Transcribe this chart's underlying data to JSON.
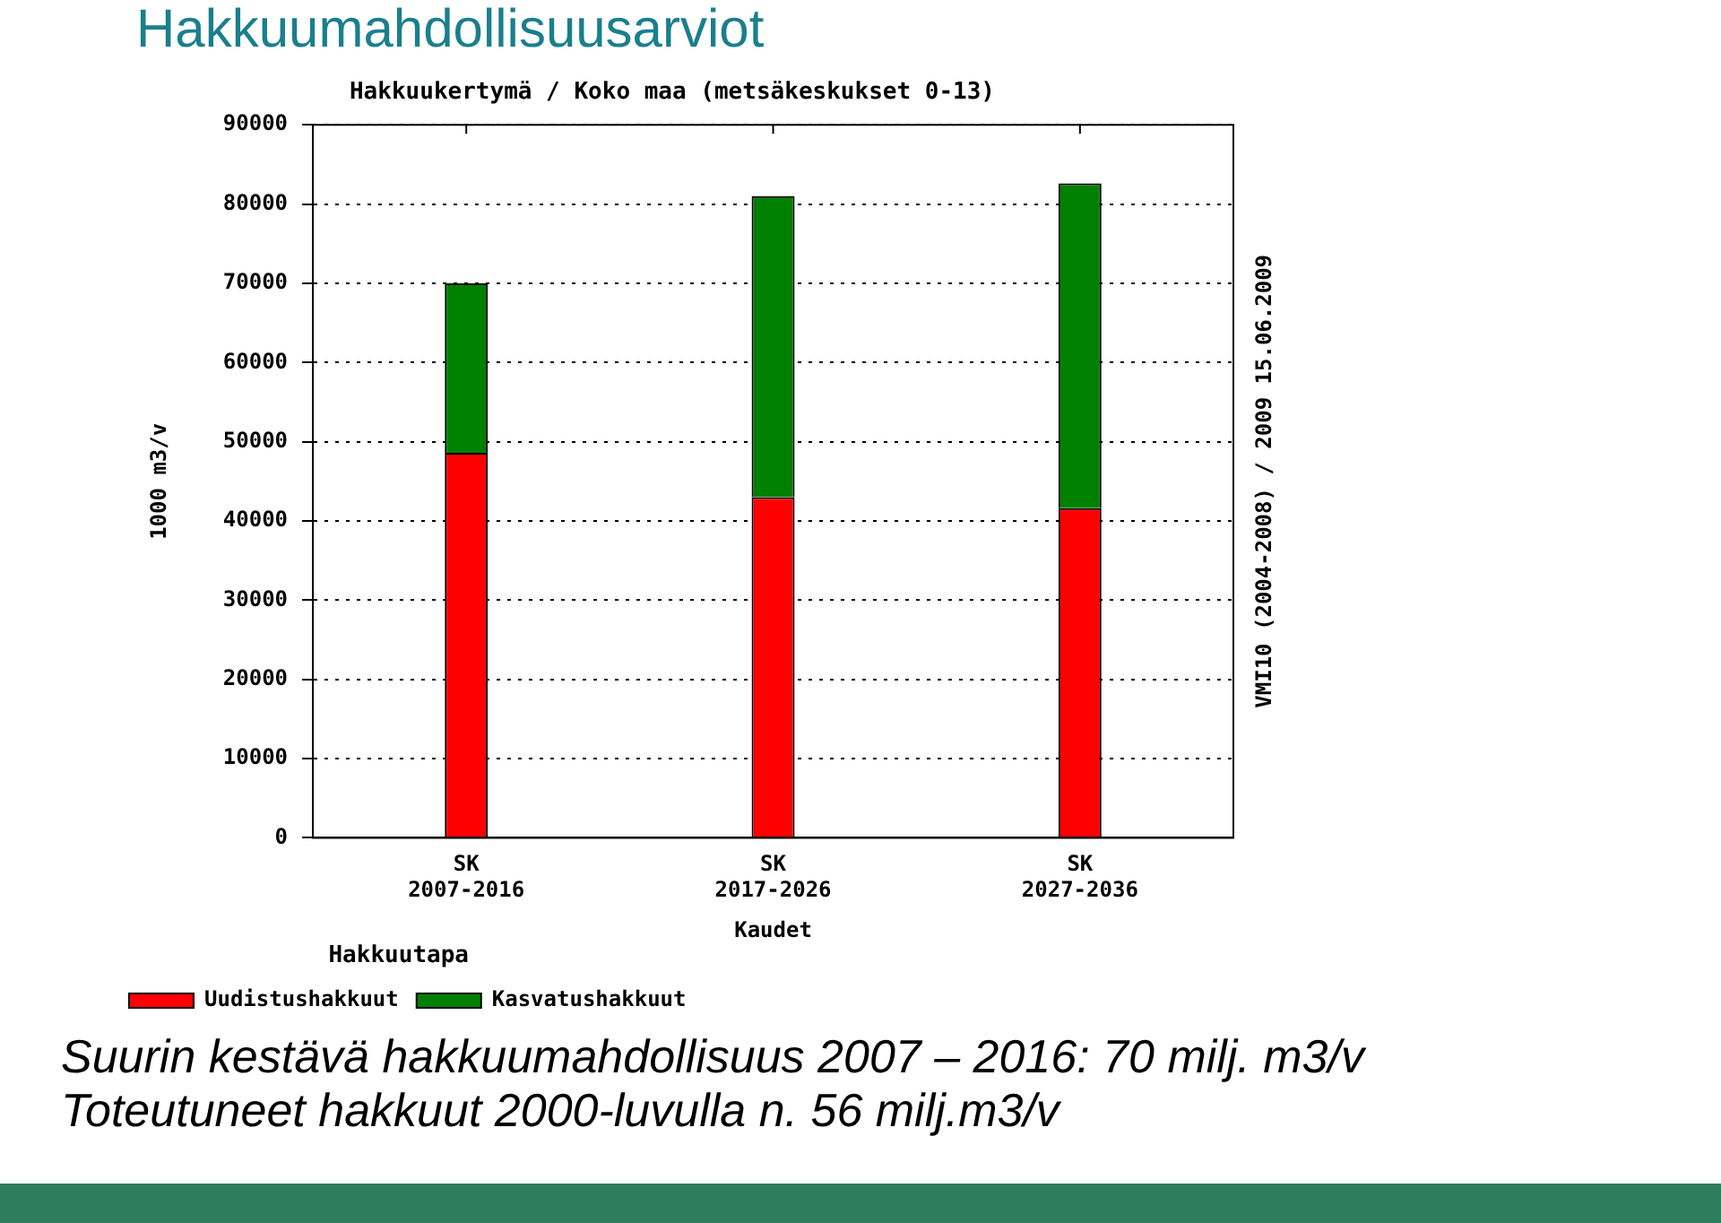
{
  "chart_data": {
    "type": "bar",
    "title": "Hakkuukertymä / Koko maa (metsäkeskukset 0-13)",
    "subtitle": "Hakkuumahdollisuusarviot",
    "xlabel": "Kaudet",
    "ylabel": "1000 m3/v",
    "legend_title": "Hakkuutapa",
    "categories": [
      "SK 2007-2016",
      "SK 2017-2026",
      "SK 2027-2036"
    ],
    "series": [
      {
        "name": "Uudistushakkuut",
        "color": "#ff0000",
        "values": [
          48600,
          43000,
          41600
        ]
      },
      {
        "name": "Kasvatushakkuut",
        "color": "#008000",
        "values": [
          21400,
          38000,
          41000
        ]
      }
    ],
    "stacked": true,
    "ylim": [
      0,
      90000
    ],
    "yticks": [
      0,
      10000,
      20000,
      30000,
      40000,
      50000,
      60000,
      70000,
      80000,
      90000
    ],
    "grid": "y",
    "legend": "bottom",
    "annotations": [
      "VMI10 (2004-2008) / 2009 15.06.2009",
      "Suurin kestävä hakkuumahdollisuus 2007 – 2016: 70 milj. m3/v",
      "Toteutuneet hakkuut 2000-luvulla n. 56 milj.m3/v"
    ]
  }
}
